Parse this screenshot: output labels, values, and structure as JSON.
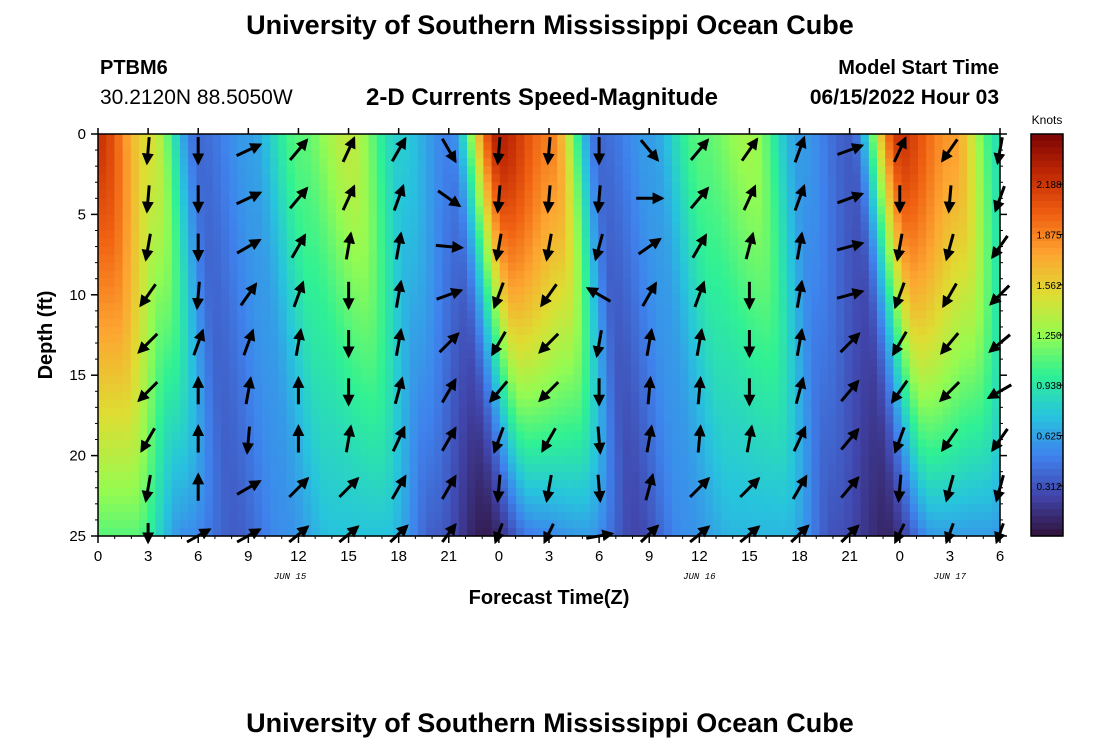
{
  "header": {
    "title": "University of Southern Mississippi Ocean Cube",
    "station_id": "PTBM6",
    "coordinates": "30.2120N  88.5050W",
    "chart_title": "2-D Currents Speed-Magnitude",
    "model_start_label": "Model Start Time",
    "model_start_value": "06/15/2022 Hour 03"
  },
  "footer": {
    "title": "University of Southern Mississippi Ocean Cube"
  },
  "chart_data": {
    "type": "heatmap",
    "title": "2-D Currents Speed-Magnitude",
    "xlabel": "Forecast Time(Z)",
    "ylabel": "Depth (ft)",
    "x_unit": "hours from Jun 15 00Z",
    "xlim": [
      0,
      54
    ],
    "ylim": [
      0,
      25
    ],
    "y_inverted": true,
    "x_ticks": [
      0,
      3,
      6,
      9,
      12,
      15,
      18,
      21,
      24,
      27,
      30,
      33,
      36,
      39,
      42,
      45,
      48,
      51,
      54
    ],
    "x_tick_labels": [
      "0",
      "3",
      "6",
      "9",
      "12",
      "15",
      "18",
      "21",
      "0",
      "3",
      "6",
      "9",
      "12",
      "15",
      "18",
      "21",
      "0",
      "3",
      "6"
    ],
    "y_ticks": [
      0,
      5,
      10,
      15,
      20,
      25
    ],
    "y_tick_labels": [
      "0",
      "5",
      "10",
      "15",
      "20",
      "25"
    ],
    "date_labels": [
      {
        "text": "JUN 15",
        "x": 11.5
      },
      {
        "text": "JUN 16",
        "x": 36
      },
      {
        "text": "JUN 17",
        "x": 51
      }
    ],
    "colorbar": {
      "unit": "Knots",
      "min": 0,
      "max": 2.5,
      "ticks": [
        0.312,
        0.625,
        0.938,
        1.25,
        1.562,
        1.875,
        2.188
      ],
      "tick_labels": [
        "0.312",
        "0.625",
        "0.938",
        "1.250",
        "1.562",
        "1.875",
        "2.188"
      ]
    },
    "speed_model": {
      "description": "approximate speed (knots) along time, interpolated between keyframes; peaks widen with depth",
      "keyframes": [
        {
          "t": 0,
          "surface": 2.2,
          "bottom": 1.1
        },
        {
          "t": 3,
          "surface": 1.5,
          "bottom": 0.55
        },
        {
          "t": 6,
          "surface": 0.4,
          "bottom": 0.35
        },
        {
          "t": 9,
          "surface": 0.6,
          "bottom": 0.55
        },
        {
          "t": 12,
          "surface": 1.1,
          "bottom": 0.75
        },
        {
          "t": 15,
          "surface": 1.4,
          "bottom": 0.75
        },
        {
          "t": 18,
          "surface": 0.8,
          "bottom": 0.35
        },
        {
          "t": 21,
          "surface": 0.5,
          "bottom": 0.05
        },
        {
          "t": 24,
          "surface": 2.3,
          "bottom": 0.5
        },
        {
          "t": 27,
          "surface": 1.9,
          "bottom": 0.6
        },
        {
          "t": 30,
          "surface": 0.4,
          "bottom": 0.25
        },
        {
          "t": 33,
          "surface": 0.6,
          "bottom": 0.55
        },
        {
          "t": 36,
          "surface": 1.1,
          "bottom": 0.7
        },
        {
          "t": 39,
          "surface": 1.3,
          "bottom": 0.7
        },
        {
          "t": 42,
          "surface": 0.6,
          "bottom": 0.3
        },
        {
          "t": 45,
          "surface": 0.35,
          "bottom": 0.1
        },
        {
          "t": 48,
          "surface": 2.2,
          "bottom": 0.6
        },
        {
          "t": 51,
          "surface": 1.8,
          "bottom": 0.6
        },
        {
          "t": 54,
          "surface": 0.9,
          "bottom": 0.4
        }
      ]
    },
    "vectors": {
      "description": "current direction arrows; angle in degrees clockwise from north (180 = toward south/down)",
      "depths": [
        1,
        4,
        7,
        10,
        13,
        16,
        19,
        22,
        25
      ],
      "times": [
        {
          "t": 3,
          "angles": [
            185,
            185,
            190,
            215,
            225,
            225,
            210,
            190,
            180
          ]
        },
        {
          "t": 6,
          "angles": [
            180,
            180,
            180,
            185,
            20,
            0,
            0,
            0,
            60
          ]
        },
        {
          "t": 9,
          "angles": [
            65,
            65,
            60,
            35,
            20,
            10,
            185,
            60,
            60
          ]
        },
        {
          "t": 12,
          "angles": [
            40,
            40,
            30,
            20,
            10,
            0,
            0,
            45,
            45
          ]
        },
        {
          "t": 15,
          "angles": [
            25,
            25,
            10,
            180,
            180,
            180,
            10,
            45,
            45
          ]
        },
        {
          "t": 18,
          "angles": [
            30,
            20,
            10,
            10,
            10,
            15,
            25,
            30,
            40
          ]
        },
        {
          "t": 21,
          "angles": [
            150,
            125,
            95,
            70,
            45,
            30,
            30,
            30,
            30
          ]
        },
        {
          "t": 24,
          "angles": [
            185,
            185,
            190,
            200,
            210,
            220,
            200,
            185,
            195
          ]
        },
        {
          "t": 27,
          "angles": [
            185,
            185,
            190,
            215,
            225,
            225,
            210,
            190,
            200
          ]
        },
        {
          "t": 30,
          "angles": [
            180,
            185,
            195,
            300,
            190,
            180,
            175,
            175,
            80
          ]
        },
        {
          "t": 33,
          "angles": [
            140,
            90,
            55,
            30,
            10,
            5,
            10,
            15,
            40
          ]
        },
        {
          "t": 36,
          "angles": [
            40,
            40,
            30,
            20,
            10,
            5,
            5,
            45,
            45
          ]
        },
        {
          "t": 39,
          "angles": [
            35,
            25,
            15,
            180,
            180,
            180,
            10,
            45,
            45
          ]
        },
        {
          "t": 42,
          "angles": [
            20,
            20,
            10,
            10,
            10,
            15,
            25,
            30,
            40
          ]
        },
        {
          "t": 45,
          "angles": [
            70,
            70,
            75,
            75,
            45,
            40,
            40,
            40,
            40
          ]
        },
        {
          "t": 48,
          "angles": [
            25,
            180,
            190,
            200,
            210,
            215,
            200,
            185,
            200
          ]
        },
        {
          "t": 51,
          "angles": [
            215,
            185,
            195,
            210,
            220,
            225,
            215,
            195,
            195
          ]
        },
        {
          "t": 54,
          "angles": [
            190,
            200,
            215,
            225,
            230,
            240,
            215,
            195,
            195
          ]
        }
      ]
    }
  }
}
